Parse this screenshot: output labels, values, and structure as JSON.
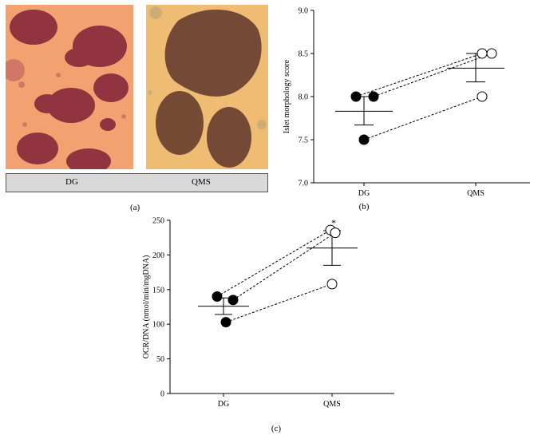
{
  "panel_a": {
    "label_left": "DG",
    "label_right": "QMS",
    "panel_letter": "(a)"
  },
  "chart_data": [
    {
      "type": "scatter",
      "panel_letter": "(b)",
      "ylabel": "Islet morphology score",
      "xlabel": "",
      "categories": [
        "DG",
        "QMS"
      ],
      "ylim": [
        7.0,
        9.0
      ],
      "yticks": [
        "7.0",
        "7.5",
        "8.0",
        "8.5",
        "9.0"
      ],
      "grid": false,
      "series": [
        {
          "values": [
            8.0,
            8.5
          ],
          "x_offset": [
            -0.1,
            0.08
          ]
        },
        {
          "values": [
            8.0,
            8.5
          ],
          "x_offset": [
            0.12,
            0.2
          ]
        },
        {
          "values": [
            7.5,
            8.0
          ],
          "x_offset": [
            0.0,
            0.08
          ]
        }
      ],
      "means": [
        7.83,
        8.33
      ],
      "sem_low": [
        7.67,
        8.17
      ],
      "sem_high": [
        8.0,
        8.5
      ],
      "marker_fill": [
        "#000000",
        "#ffffff"
      ]
    },
    {
      "type": "scatter",
      "panel_letter": "(c)",
      "ylabel": "OCR/DNA (nmol/min/mgDNA)",
      "xlabel": "",
      "categories": [
        "DG",
        "QMS"
      ],
      "ylim": [
        0,
        250
      ],
      "yticks": [
        "0",
        "50",
        "100",
        "150",
        "200",
        "250"
      ],
      "grid": false,
      "annotation": "*",
      "series": [
        {
          "values": [
            140,
            236
          ],
          "x_offset": [
            -0.08,
            -0.02
          ]
        },
        {
          "values": [
            135,
            232
          ],
          "x_offset": [
            0.12,
            0.04
          ]
        },
        {
          "values": [
            103,
            158
          ],
          "x_offset": [
            0.03,
            0.0
          ]
        }
      ],
      "means": [
        126,
        210
      ],
      "sem_low": [
        114,
        185
      ],
      "sem_high": [
        138,
        235
      ],
      "marker_fill": [
        "#000000",
        "#ffffff"
      ]
    }
  ]
}
